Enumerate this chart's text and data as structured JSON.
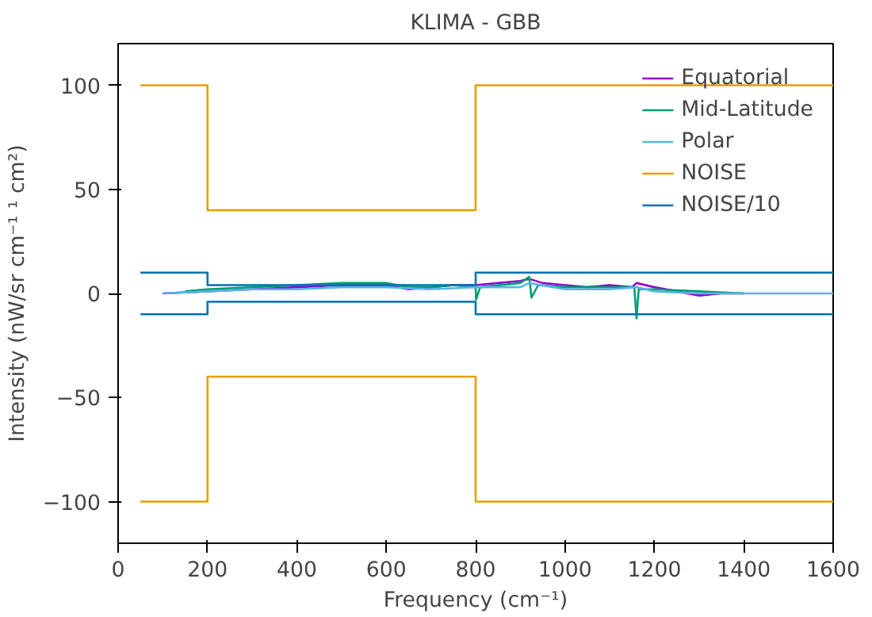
{
  "chart_data": {
    "type": "line",
    "title": "KLIMA - GBB",
    "xlabel": "Frequency (cm⁻¹)",
    "ylabel": "Intensity (nW/sr cm⁻¹ ¹ cm²)",
    "xlim": [
      0,
      1600
    ],
    "ylim": [
      -120,
      120
    ],
    "xticks": [
      0,
      200,
      400,
      600,
      800,
      1000,
      1200,
      1400,
      1600
    ],
    "yticks": [
      -100,
      -50,
      0,
      50,
      100
    ],
    "grid": false,
    "legend": "top right",
    "series": [
      {
        "name": "Equatorial",
        "color": "#9400d3",
        "x": [
          100,
          200,
          300,
          400,
          500,
          600,
          650,
          700,
          750,
          800,
          850,
          900,
          920,
          950,
          1000,
          1050,
          1100,
          1150,
          1160,
          1200,
          1250,
          1300,
          1350,
          1400
        ],
        "values": [
          0,
          1,
          2,
          3,
          4,
          4,
          2,
          3,
          4,
          4,
          5,
          6,
          7,
          5,
          4,
          3,
          4,
          3,
          5,
          3,
          1,
          -1,
          0,
          0
        ]
      },
      {
        "name": "Mid-Latitude",
        "color": "#009e73",
        "x": [
          150,
          200,
          300,
          400,
          500,
          600,
          650,
          700,
          750,
          800,
          801,
          810,
          900,
          920,
          925,
          940,
          1000,
          1100,
          1155,
          1160,
          1165,
          1200,
          1300,
          1400
        ],
        "values": [
          1,
          2,
          3,
          4,
          5,
          5,
          3,
          3,
          4,
          3,
          -3,
          3,
          5,
          8,
          -2,
          4,
          3,
          3,
          3,
          -12,
          2,
          2,
          1,
          0
        ]
      },
      {
        "name": "Polar",
        "color": "#56b4e9",
        "x": [
          100,
          200,
          300,
          400,
          500,
          600,
          700,
          800,
          900,
          920,
          1000,
          1100,
          1160,
          1200,
          1300,
          1400,
          1600
        ],
        "values": [
          0,
          1,
          2,
          2,
          3,
          3,
          2,
          3,
          3,
          5,
          2,
          2,
          3,
          1,
          0,
          0,
          0
        ]
      },
      {
        "name": "NOISE",
        "color": "#e69f00",
        "x": [
          50,
          200,
          200,
          800,
          800,
          1600
        ],
        "values": [
          100,
          100,
          40,
          40,
          100,
          100
        ]
      },
      {
        "name": "NOISE/10",
        "color": "#0072b2",
        "x": [
          50,
          200,
          200,
          800,
          800,
          1600
        ],
        "values": [
          10,
          10,
          4,
          4,
          10,
          10
        ]
      },
      {
        "color": "#e69f00",
        "x": [
          50,
          200,
          200,
          800,
          800,
          1600
        ],
        "values": [
          -100,
          -100,
          -40,
          -40,
          -100,
          -100
        ]
      },
      {
        "color": "#0072b2",
        "x": [
          50,
          200,
          200,
          800,
          800,
          1600
        ],
        "values": [
          -10,
          -10,
          -4,
          -4,
          -10,
          -10
        ]
      }
    ]
  }
}
